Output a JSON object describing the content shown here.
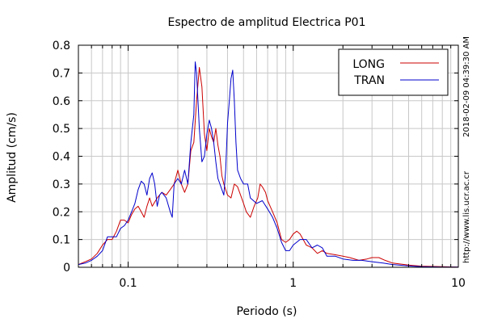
{
  "chart_data": {
    "type": "line",
    "title": "Espectro de amplitud Electrica P01",
    "xlabel": "Periodo (s)",
    "ylabel": "Amplitud (cm/s)",
    "x_scale": "log",
    "xlim": [
      0.05,
      10
    ],
    "ylim": [
      0,
      0.8
    ],
    "grid": true,
    "legend_position": "top-right",
    "x_ticks": [
      {
        "value": 0.1,
        "label": "0.1"
      },
      {
        "value": 1,
        "label": "1"
      },
      {
        "value": 10,
        "label": "10"
      }
    ],
    "y_ticks": [
      {
        "value": 0,
        "label": "0"
      },
      {
        "value": 0.1,
        "label": "0.1"
      },
      {
        "value": 0.2,
        "label": "0.2"
      },
      {
        "value": 0.3,
        "label": "0.3"
      },
      {
        "value": 0.4,
        "label": "0.4"
      },
      {
        "value": 0.5,
        "label": "0.5"
      },
      {
        "value": 0.6,
        "label": "0.6"
      },
      {
        "value": 0.7,
        "label": "0.7"
      },
      {
        "value": 0.8,
        "label": "0.8"
      }
    ],
    "series": [
      {
        "name": "LONG",
        "color": "#cc0000",
        "points": [
          [
            0.05,
            0.01
          ],
          [
            0.055,
            0.02
          ],
          [
            0.06,
            0.03
          ],
          [
            0.065,
            0.05
          ],
          [
            0.07,
            0.08
          ],
          [
            0.075,
            0.1
          ],
          [
            0.08,
            0.1
          ],
          [
            0.085,
            0.13
          ],
          [
            0.09,
            0.17
          ],
          [
            0.095,
            0.17
          ],
          [
            0.1,
            0.16
          ],
          [
            0.105,
            0.19
          ],
          [
            0.11,
            0.21
          ],
          [
            0.115,
            0.22
          ],
          [
            0.12,
            0.2
          ],
          [
            0.125,
            0.18
          ],
          [
            0.13,
            0.22
          ],
          [
            0.135,
            0.25
          ],
          [
            0.14,
            0.22
          ],
          [
            0.15,
            0.25
          ],
          [
            0.16,
            0.27
          ],
          [
            0.17,
            0.26
          ],
          [
            0.18,
            0.28
          ],
          [
            0.19,
            0.3
          ],
          [
            0.2,
            0.35
          ],
          [
            0.21,
            0.3
          ],
          [
            0.22,
            0.27
          ],
          [
            0.23,
            0.3
          ],
          [
            0.24,
            0.42
          ],
          [
            0.25,
            0.45
          ],
          [
            0.26,
            0.6
          ],
          [
            0.27,
            0.72
          ],
          [
            0.28,
            0.65
          ],
          [
            0.29,
            0.48
          ],
          [
            0.3,
            0.42
          ],
          [
            0.31,
            0.5
          ],
          [
            0.32,
            0.47
          ],
          [
            0.33,
            0.45
          ],
          [
            0.34,
            0.5
          ],
          [
            0.35,
            0.44
          ],
          [
            0.36,
            0.4
          ],
          [
            0.37,
            0.33
          ],
          [
            0.38,
            0.3
          ],
          [
            0.39,
            0.28
          ],
          [
            0.4,
            0.26
          ],
          [
            0.42,
            0.25
          ],
          [
            0.44,
            0.3
          ],
          [
            0.46,
            0.29
          ],
          [
            0.48,
            0.26
          ],
          [
            0.5,
            0.23
          ],
          [
            0.52,
            0.2
          ],
          [
            0.55,
            0.18
          ],
          [
            0.58,
            0.22
          ],
          [
            0.61,
            0.25
          ],
          [
            0.63,
            0.3
          ],
          [
            0.65,
            0.29
          ],
          [
            0.68,
            0.27
          ],
          [
            0.7,
            0.24
          ],
          [
            0.75,
            0.2
          ],
          [
            0.8,
            0.16
          ],
          [
            0.85,
            0.1
          ],
          [
            0.9,
            0.09
          ],
          [
            0.95,
            0.1
          ],
          [
            1.0,
            0.12
          ],
          [
            1.05,
            0.13
          ],
          [
            1.1,
            0.12
          ],
          [
            1.15,
            0.1
          ],
          [
            1.2,
            0.08
          ],
          [
            1.3,
            0.07
          ],
          [
            1.4,
            0.05
          ],
          [
            1.5,
            0.06
          ],
          [
            1.6,
            0.05
          ],
          [
            1.8,
            0.045
          ],
          [
            2.0,
            0.04
          ],
          [
            2.2,
            0.035
          ],
          [
            2.5,
            0.025
          ],
          [
            2.8,
            0.03
          ],
          [
            3.0,
            0.035
          ],
          [
            3.3,
            0.035
          ],
          [
            3.6,
            0.025
          ],
          [
            4.0,
            0.015
          ],
          [
            5.0,
            0.008
          ],
          [
            6.0,
            0.004
          ],
          [
            8.0,
            0.002
          ],
          [
            10.0,
            0.001
          ]
        ]
      },
      {
        "name": "TRAN",
        "color": "#0000cc",
        "points": [
          [
            0.05,
            0.01
          ],
          [
            0.055,
            0.015
          ],
          [
            0.06,
            0.025
          ],
          [
            0.065,
            0.04
          ],
          [
            0.07,
            0.06
          ],
          [
            0.075,
            0.11
          ],
          [
            0.08,
            0.11
          ],
          [
            0.085,
            0.11
          ],
          [
            0.09,
            0.14
          ],
          [
            0.095,
            0.15
          ],
          [
            0.1,
            0.17
          ],
          [
            0.105,
            0.2
          ],
          [
            0.11,
            0.23
          ],
          [
            0.115,
            0.28
          ],
          [
            0.12,
            0.31
          ],
          [
            0.125,
            0.3
          ],
          [
            0.13,
            0.26
          ],
          [
            0.135,
            0.32
          ],
          [
            0.14,
            0.34
          ],
          [
            0.145,
            0.3
          ],
          [
            0.15,
            0.22
          ],
          [
            0.155,
            0.26
          ],
          [
            0.16,
            0.27
          ],
          [
            0.17,
            0.25
          ],
          [
            0.18,
            0.2
          ],
          [
            0.185,
            0.18
          ],
          [
            0.19,
            0.3
          ],
          [
            0.2,
            0.32
          ],
          [
            0.21,
            0.3
          ],
          [
            0.22,
            0.35
          ],
          [
            0.23,
            0.3
          ],
          [
            0.24,
            0.45
          ],
          [
            0.25,
            0.55
          ],
          [
            0.255,
            0.74
          ],
          [
            0.26,
            0.7
          ],
          [
            0.27,
            0.5
          ],
          [
            0.28,
            0.38
          ],
          [
            0.29,
            0.4
          ],
          [
            0.3,
            0.48
          ],
          [
            0.31,
            0.53
          ],
          [
            0.32,
            0.5
          ],
          [
            0.33,
            0.45
          ],
          [
            0.34,
            0.38
          ],
          [
            0.35,
            0.32
          ],
          [
            0.36,
            0.3
          ],
          [
            0.37,
            0.28
          ],
          [
            0.38,
            0.26
          ],
          [
            0.39,
            0.35
          ],
          [
            0.4,
            0.52
          ],
          [
            0.41,
            0.6
          ],
          [
            0.42,
            0.68
          ],
          [
            0.43,
            0.71
          ],
          [
            0.44,
            0.6
          ],
          [
            0.45,
            0.45
          ],
          [
            0.46,
            0.35
          ],
          [
            0.48,
            0.32
          ],
          [
            0.5,
            0.3
          ],
          [
            0.53,
            0.3
          ],
          [
            0.55,
            0.25
          ],
          [
            0.6,
            0.23
          ],
          [
            0.65,
            0.24
          ],
          [
            0.7,
            0.21
          ],
          [
            0.75,
            0.18
          ],
          [
            0.8,
            0.14
          ],
          [
            0.85,
            0.09
          ],
          [
            0.9,
            0.06
          ],
          [
            0.95,
            0.06
          ],
          [
            1.0,
            0.08
          ],
          [
            1.1,
            0.1
          ],
          [
            1.2,
            0.1
          ],
          [
            1.3,
            0.07
          ],
          [
            1.4,
            0.08
          ],
          [
            1.5,
            0.07
          ],
          [
            1.6,
            0.04
          ],
          [
            1.8,
            0.04
          ],
          [
            2.0,
            0.03
          ],
          [
            2.3,
            0.025
          ],
          [
            2.6,
            0.025
          ],
          [
            3.0,
            0.02
          ],
          [
            3.5,
            0.015
          ],
          [
            4.0,
            0.01
          ],
          [
            5.0,
            0.005
          ],
          [
            6.0,
            0.002
          ],
          [
            8.0,
            0.001
          ],
          [
            10.0,
            0.001
          ]
        ]
      }
    ]
  },
  "side_text": {
    "timestamp": "2018-02-09 04:39:30 AM",
    "url": "http://www.lis.ucr.ac.cr"
  }
}
